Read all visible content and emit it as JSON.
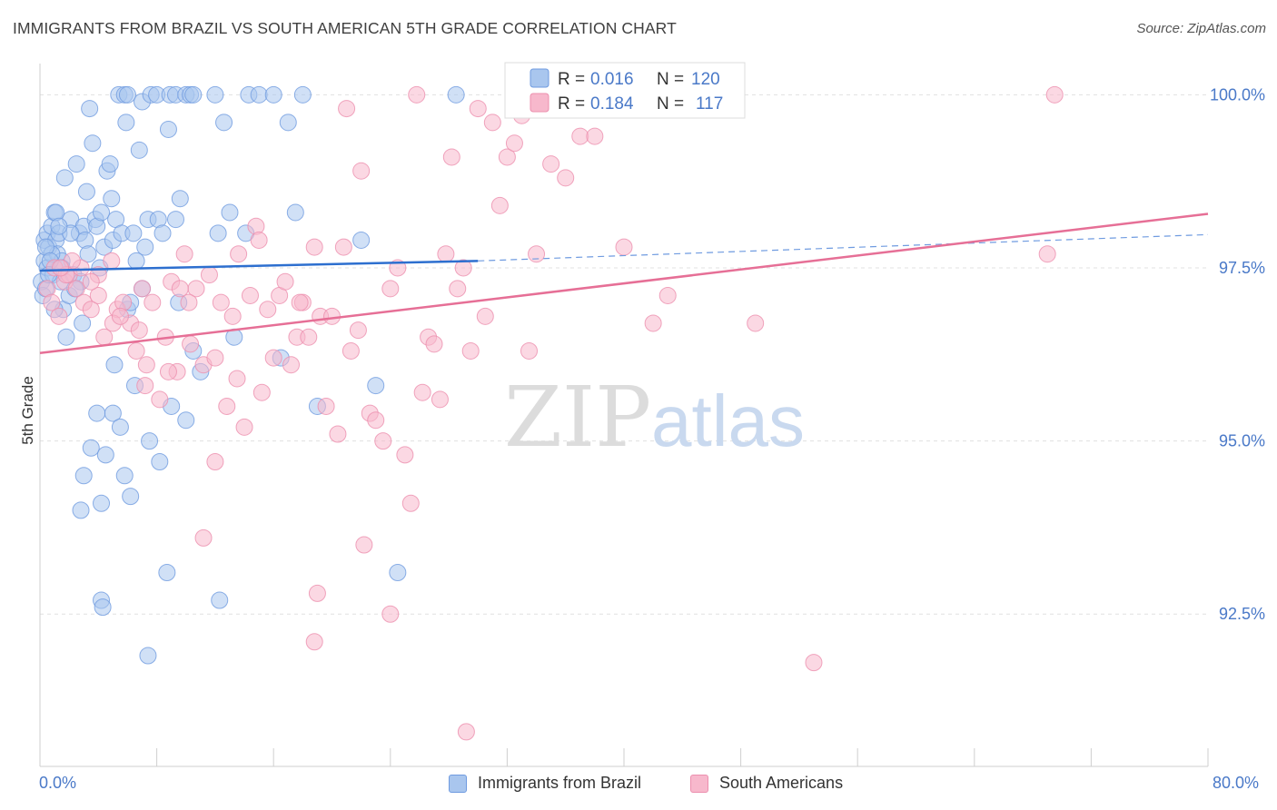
{
  "title": "IMMIGRANTS FROM BRAZIL VS SOUTH AMERICAN 5TH GRADE CORRELATION CHART",
  "source": "Source: ZipAtlas.com",
  "watermark": {
    "zip": "ZIP",
    "atlas": "atlas"
  },
  "colors": {
    "blue": "#4a79c8",
    "blue_fill": "#a9c6ee",
    "blue_stroke": "#6f9be0",
    "blue_line": "#2d6fcf",
    "pink": "#e66f96",
    "pink_fill": "#f7b8cc",
    "pink_stroke": "#ec8fae",
    "grid": "#e0e0e0"
  },
  "legend_top": {
    "rows": [
      {
        "r_label": "R =",
        "r_value": "0.016",
        "n_label": "N =",
        "n_value": "120"
      },
      {
        "r_label": "R =",
        "r_value": "0.184",
        "n_label": "N =",
        "n_value": "117"
      }
    ]
  },
  "legend_bottom": [
    {
      "label": "Immigrants from Brazil"
    },
    {
      "label": "South Americans"
    }
  ],
  "chart_data": {
    "type": "scatter",
    "xlabel": "",
    "ylabel": "5th Grade",
    "xlim": [
      0,
      80
    ],
    "ylim": [
      90.3,
      100.45
    ],
    "x_tick_labels": [
      "0.0%",
      "80.0%"
    ],
    "y_ticks": [
      {
        "value": 100.0,
        "label": "100.0%"
      },
      {
        "value": 97.5,
        "label": "97.5%"
      },
      {
        "value": 95.0,
        "label": "95.0%"
      },
      {
        "value": 92.5,
        "label": "92.5%"
      }
    ],
    "series": [
      {
        "name": "Immigrants from Brazil",
        "color": "#a9c6ee",
        "r": 0.016,
        "n": 120,
        "trend": {
          "x0": 0,
          "y0": 97.46,
          "x1": 30,
          "y1": 97.6,
          "x2": 80,
          "y2": 97.98
        },
        "points": [
          [
            0.1,
            97.3
          ],
          [
            0.2,
            97.1
          ],
          [
            0.3,
            97.6
          ],
          [
            0.3,
            97.9
          ],
          [
            0.4,
            97.2
          ],
          [
            0.5,
            97.5
          ],
          [
            0.5,
            98.0
          ],
          [
            0.6,
            97.8
          ],
          [
            0.8,
            98.1
          ],
          [
            0.9,
            97.4
          ],
          [
            1.0,
            98.3
          ],
          [
            1.1,
            97.9
          ],
          [
            1.2,
            97.7
          ],
          [
            1.3,
            98.0
          ],
          [
            1.4,
            97.3
          ],
          [
            1.5,
            97.6
          ],
          [
            1.6,
            96.9
          ],
          [
            1.7,
            98.8
          ],
          [
            1.8,
            96.5
          ],
          [
            2.0,
            97.1
          ],
          [
            2.1,
            98.2
          ],
          [
            2.3,
            97.4
          ],
          [
            2.5,
            99.0
          ],
          [
            2.7,
            98.0
          ],
          [
            2.8,
            97.3
          ],
          [
            2.9,
            96.7
          ],
          [
            3.0,
            98.1
          ],
          [
            3.1,
            97.9
          ],
          [
            3.2,
            98.6
          ],
          [
            3.4,
            99.8
          ],
          [
            3.6,
            99.3
          ],
          [
            3.8,
            98.2
          ],
          [
            3.9,
            98.1
          ],
          [
            4.1,
            97.5
          ],
          [
            4.2,
            98.3
          ],
          [
            4.4,
            97.8
          ],
          [
            4.6,
            98.9
          ],
          [
            4.8,
            99.0
          ],
          [
            5.0,
            97.9
          ],
          [
            5.1,
            96.1
          ],
          [
            5.2,
            98.2
          ],
          [
            5.4,
            100.0
          ],
          [
            5.6,
            98.0
          ],
          [
            5.8,
            100.0
          ],
          [
            5.9,
            99.6
          ],
          [
            6.0,
            96.9
          ],
          [
            6.2,
            97.0
          ],
          [
            6.4,
            98.0
          ],
          [
            6.6,
            97.6
          ],
          [
            6.8,
            99.2
          ],
          [
            7.0,
            99.9
          ],
          [
            7.2,
            97.8
          ],
          [
            7.4,
            98.2
          ],
          [
            7.6,
            100.0
          ],
          [
            8.0,
            100.0
          ],
          [
            8.1,
            98.2
          ],
          [
            8.4,
            98.0
          ],
          [
            8.9,
            100.0
          ],
          [
            9.3,
            100.0
          ],
          [
            9.6,
            98.5
          ],
          [
            10.0,
            100.0
          ],
          [
            10.3,
            100.0
          ],
          [
            10.5,
            100.0
          ],
          [
            12.0,
            100.0
          ],
          [
            12.2,
            98.0
          ],
          [
            12.6,
            99.6
          ],
          [
            13.0,
            98.3
          ],
          [
            13.3,
            96.5
          ],
          [
            14.1,
            98.0
          ],
          [
            14.3,
            100.0
          ],
          [
            15.0,
            100.0
          ],
          [
            16.0,
            100.0
          ],
          [
            16.5,
            96.2
          ],
          [
            17.0,
            99.6
          ],
          [
            17.5,
            98.3
          ],
          [
            18.0,
            100.0
          ],
          [
            19.0,
            95.5
          ],
          [
            22.0,
            97.9
          ],
          [
            23.0,
            95.8
          ],
          [
            24.5,
            93.1
          ],
          [
            28.5,
            100.0
          ],
          [
            2.8,
            94.0
          ],
          [
            3.0,
            94.5
          ],
          [
            3.5,
            94.9
          ],
          [
            3.9,
            95.4
          ],
          [
            4.2,
            94.1
          ],
          [
            4.5,
            94.8
          ],
          [
            5.0,
            95.4
          ],
          [
            5.5,
            95.2
          ],
          [
            5.8,
            94.5
          ],
          [
            6.2,
            94.2
          ],
          [
            6.5,
            95.8
          ],
          [
            7.0,
            97.2
          ],
          [
            7.5,
            95.0
          ],
          [
            8.2,
            94.7
          ],
          [
            9.0,
            95.5
          ],
          [
            9.5,
            97.0
          ],
          [
            10.0,
            95.3
          ],
          [
            10.5,
            96.3
          ],
          [
            4.2,
            92.7
          ],
          [
            4.3,
            92.6
          ],
          [
            7.4,
            91.9
          ],
          [
            8.7,
            93.1
          ],
          [
            12.3,
            92.7
          ],
          [
            6.0,
            100.0
          ],
          [
            8.8,
            99.5
          ],
          [
            9.3,
            98.2
          ],
          [
            1.5,
            97.5
          ],
          [
            2.1,
            98.0
          ],
          [
            2.4,
            97.2
          ],
          [
            3.3,
            97.7
          ],
          [
            4.9,
            98.5
          ],
          [
            0.8,
            97.7
          ],
          [
            1.1,
            98.3
          ],
          [
            0.4,
            97.8
          ],
          [
            0.7,
            97.6
          ],
          [
            1.0,
            96.9
          ],
          [
            0.6,
            97.4
          ],
          [
            1.3,
            98.1
          ],
          [
            11.0,
            96.0
          ]
        ]
      },
      {
        "name": "South Americans",
        "color": "#f7b8cc",
        "r": 0.184,
        "n": 117,
        "trend": {
          "x0": 0,
          "y0": 96.27,
          "x1": 80,
          "y1": 98.28
        },
        "points": [
          [
            0.5,
            97.2
          ],
          [
            0.8,
            97.0
          ],
          [
            1.0,
            97.5
          ],
          [
            1.3,
            96.8
          ],
          [
            1.7,
            97.3
          ],
          [
            2.0,
            97.4
          ],
          [
            2.5,
            97.2
          ],
          [
            3.0,
            97.0
          ],
          [
            3.5,
            96.9
          ],
          [
            4.0,
            97.1
          ],
          [
            4.4,
            96.5
          ],
          [
            4.9,
            97.6
          ],
          [
            5.3,
            96.9
          ],
          [
            5.7,
            97.0
          ],
          [
            6.2,
            96.7
          ],
          [
            6.6,
            96.3
          ],
          [
            7.0,
            97.2
          ],
          [
            7.3,
            96.1
          ],
          [
            7.7,
            97.0
          ],
          [
            8.2,
            95.6
          ],
          [
            8.6,
            96.5
          ],
          [
            9.0,
            97.3
          ],
          [
            9.4,
            96.0
          ],
          [
            9.9,
            97.7
          ],
          [
            10.3,
            96.4
          ],
          [
            10.7,
            97.2
          ],
          [
            11.2,
            96.1
          ],
          [
            11.6,
            97.4
          ],
          [
            12.0,
            96.2
          ],
          [
            12.4,
            97.0
          ],
          [
            12.8,
            95.5
          ],
          [
            13.2,
            96.8
          ],
          [
            13.6,
            97.7
          ],
          [
            14.0,
            95.2
          ],
          [
            14.4,
            97.1
          ],
          [
            14.8,
            98.1
          ],
          [
            15.2,
            95.7
          ],
          [
            15.6,
            96.9
          ],
          [
            16.0,
            96.2
          ],
          [
            16.4,
            97.1
          ],
          [
            16.8,
            97.3
          ],
          [
            17.2,
            96.1
          ],
          [
            17.6,
            96.5
          ],
          [
            18.0,
            97.0
          ],
          [
            18.4,
            96.5
          ],
          [
            18.8,
            97.8
          ],
          [
            19.2,
            96.8
          ],
          [
            19.6,
            95.5
          ],
          [
            20.0,
            96.8
          ],
          [
            20.4,
            95.1
          ],
          [
            20.8,
            97.8
          ],
          [
            21.0,
            99.8
          ],
          [
            21.3,
            96.3
          ],
          [
            21.8,
            96.6
          ],
          [
            22.2,
            93.5
          ],
          [
            22.6,
            95.4
          ],
          [
            23.0,
            95.3
          ],
          [
            23.5,
            95.0
          ],
          [
            24.0,
            97.2
          ],
          [
            24.5,
            97.5
          ],
          [
            25.0,
            94.8
          ],
          [
            25.4,
            94.1
          ],
          [
            25.8,
            100.0
          ],
          [
            26.2,
            95.7
          ],
          [
            26.6,
            96.5
          ],
          [
            27.0,
            96.4
          ],
          [
            27.4,
            95.6
          ],
          [
            27.8,
            97.7
          ],
          [
            28.2,
            99.1
          ],
          [
            28.6,
            97.2
          ],
          [
            29.0,
            97.5
          ],
          [
            29.5,
            96.3
          ],
          [
            30.0,
            99.8
          ],
          [
            30.5,
            96.8
          ],
          [
            31.0,
            99.6
          ],
          [
            31.5,
            98.4
          ],
          [
            32.0,
            99.1
          ],
          [
            32.5,
            99.3
          ],
          [
            33.0,
            99.7
          ],
          [
            33.5,
            96.3
          ],
          [
            34.0,
            97.7
          ],
          [
            34.5,
            99.9
          ],
          [
            35.0,
            99.0
          ],
          [
            36.0,
            98.8
          ],
          [
            37.0,
            99.4
          ],
          [
            38.0,
            99.4
          ],
          [
            39.0,
            100.0
          ],
          [
            40.0,
            97.8
          ],
          [
            42.0,
            96.7
          ],
          [
            49.0,
            96.7
          ],
          [
            69.0,
            97.7
          ],
          [
            69.5,
            100.0
          ],
          [
            43.0,
            97.1
          ],
          [
            53.0,
            91.8
          ],
          [
            29.2,
            90.8
          ],
          [
            24.0,
            92.5
          ],
          [
            19.0,
            92.8
          ],
          [
            18.8,
            92.1
          ],
          [
            11.2,
            93.6
          ],
          [
            12.0,
            94.7
          ],
          [
            13.5,
            95.9
          ],
          [
            8.8,
            96.0
          ],
          [
            7.2,
            95.8
          ],
          [
            10.2,
            97.0
          ],
          [
            9.6,
            97.2
          ],
          [
            5.0,
            96.7
          ],
          [
            5.5,
            96.8
          ],
          [
            6.8,
            96.6
          ],
          [
            4.0,
            97.4
          ],
          [
            3.5,
            97.3
          ],
          [
            2.8,
            97.5
          ],
          [
            2.2,
            97.6
          ],
          [
            1.8,
            97.4
          ],
          [
            1.4,
            97.5
          ],
          [
            15.0,
            97.9
          ],
          [
            17.8,
            97.0
          ],
          [
            22.0,
            98.9
          ]
        ]
      }
    ]
  }
}
